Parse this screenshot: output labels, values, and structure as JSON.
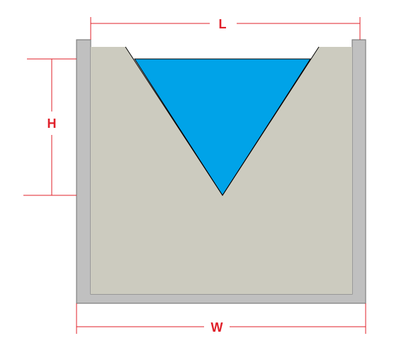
{
  "labels": {
    "length": "L",
    "height": "H",
    "width": "W"
  },
  "colors": {
    "wall": "#c0c0c0",
    "wall_stroke": "#808080",
    "fill": "#cccbbf",
    "water": "#00a3e8",
    "dimension": "#e0202a",
    "outline": "#000000"
  }
}
